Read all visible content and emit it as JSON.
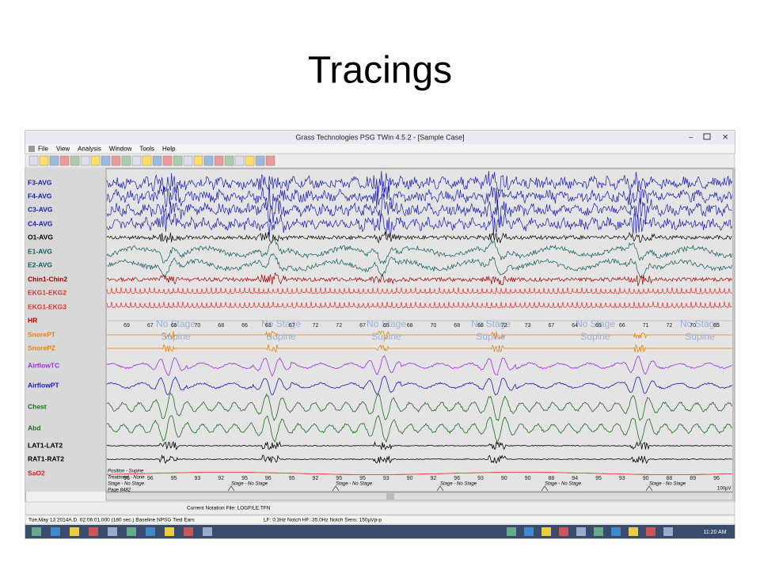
{
  "slide_title": "Tracings",
  "window": {
    "title": "Grass Technologies PSG TWin 4.5.2 - [Sample Case]",
    "menu": [
      "File",
      "View",
      "Analysis",
      "Window",
      "Tools",
      "Help"
    ]
  },
  "channels": [
    {
      "label": "F3-AVG",
      "color": "#1c1cb0"
    },
    {
      "label": "F4-AVG",
      "color": "#1c1cb0"
    },
    {
      "label": "C3-AVG",
      "color": "#1c1cb0"
    },
    {
      "label": "C4-AVG",
      "color": "#1c1cb0"
    },
    {
      "label": "O1-AVG",
      "color": "#000000"
    },
    {
      "label": "E1-AVG",
      "color": "#0f5a5a"
    },
    {
      "label": "E2-AVG",
      "color": "#0f5a5a"
    },
    {
      "label": "Chin1-Chin2",
      "color": "#a00000"
    },
    {
      "label": "EKG1-EKG2",
      "color": "#e03030"
    },
    {
      "label": "EKG1-EKG3",
      "color": "#e03030"
    },
    {
      "label": "HR",
      "color": "#c00000"
    },
    {
      "label": "SnorePT",
      "color": "#f08000"
    },
    {
      "label": "SnorePZ",
      "color": "#f08000"
    },
    {
      "label": "AirflowTC",
      "color": "#9b30e0"
    },
    {
      "label": "AirflowPT",
      "color": "#1c1cb0"
    },
    {
      "label": "Chest",
      "color": "#1e6a1e"
    },
    {
      "label": "Abd",
      "color": "#1e6a1e"
    },
    {
      "label": "LAT1-LAT2",
      "color": "#000000"
    },
    {
      "label": "RAT1-RAT2",
      "color": "#000000"
    },
    {
      "label": "SaO2",
      "color": "#e02020"
    }
  ],
  "hr_values": [
    69,
    67,
    66,
    70,
    68,
    66,
    63,
    67,
    72,
    72,
    67,
    65,
    68,
    70,
    68,
    66,
    72,
    73,
    67,
    64,
    65,
    66,
    71,
    72,
    70,
    65
  ],
  "sao2_values": [
    95,
    96,
    95,
    93,
    92,
    95,
    96,
    95,
    92,
    95,
    95,
    93,
    90,
    92,
    96,
    93,
    90,
    90,
    88,
    94,
    95,
    93,
    90,
    88,
    89,
    96
  ],
  "overlays": {
    "stage": "No Stage",
    "position": "Supine"
  },
  "annotations": {
    "position": "Position - Supine",
    "treatment": "Treatment - None",
    "stage": "Stage - No Stage",
    "page": "Page 8482"
  },
  "scale_label": "100µV",
  "notation": "Current Notation File: LOGFILE.TFN",
  "status": [
    "Tue,May 13 2014A.D. 02:06:01.000 (180 sec.) Baseline NPSG Tied Ears",
    "LF: 0.3Hz Notch HF: 35.0Hz Notch Sens: 150µVp-p"
  ],
  "clock": "11:20 AM"
}
